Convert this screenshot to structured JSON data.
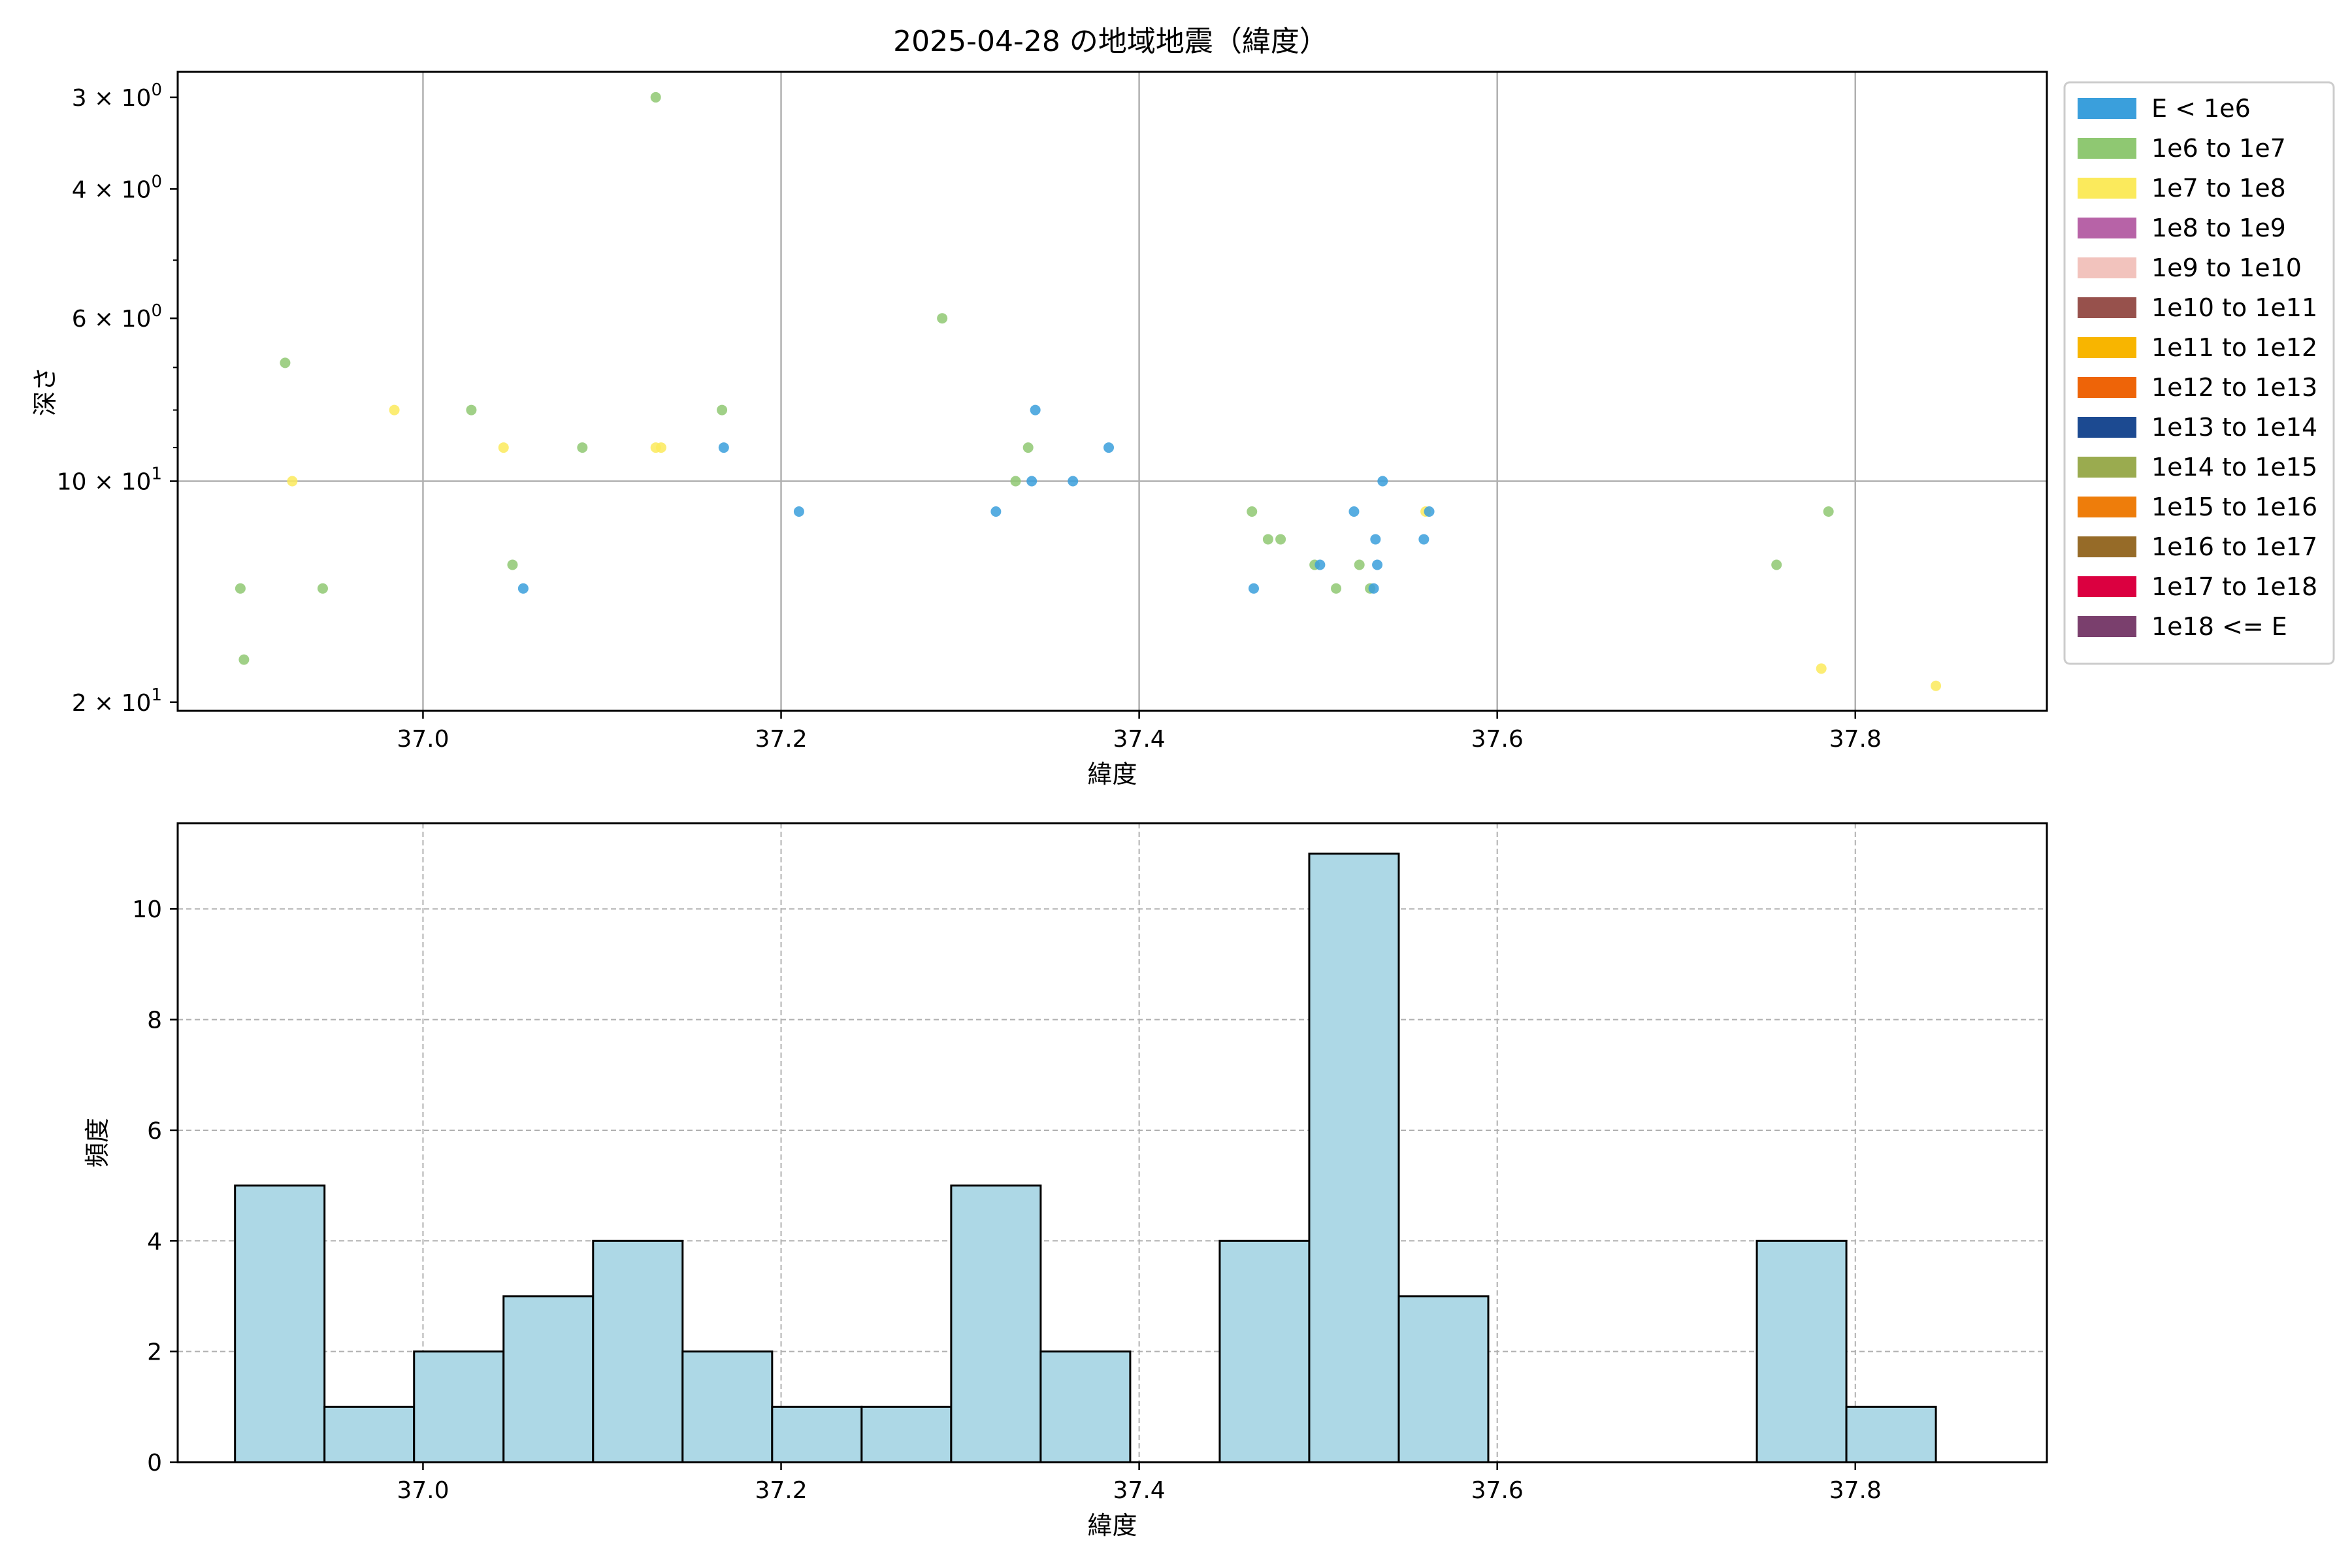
{
  "figure": {
    "title": "2025-04-28 の地域地震（緯度）"
  },
  "chart_data": [
    {
      "type": "scatter",
      "xlabel": "緯度",
      "ylabel": "深さ",
      "xlim": [
        36.863,
        37.907
      ],
      "ylim": [
        20.55,
        2.77
      ],
      "yscale": "log",
      "y_inverted": true,
      "grid": true,
      "xticks": [
        37.0,
        37.2,
        37.4,
        37.6,
        37.8
      ],
      "xtick_labels": [
        "37.0",
        "37.2",
        "37.4",
        "37.6",
        "37.8"
      ],
      "yticks": [
        3,
        4,
        6,
        10,
        20
      ],
      "ytick_labels": [
        {
          "base": "3",
          "exp": "0"
        },
        {
          "base": "4",
          "exp": "0"
        },
        {
          "base": "6",
          "exp": "0"
        },
        {
          "base": "10",
          "exp": "1"
        },
        {
          "base": "2",
          "exp": "1"
        }
      ],
      "legend_position": "outside-right-top",
      "legend": [
        {
          "label": "E < 1e6",
          "color": "#3a9fdc"
        },
        {
          "label": "1e6 to 1e7",
          "color": "#8fc872"
        },
        {
          "label": "1e7 to 1e8",
          "color": "#fbea5c"
        },
        {
          "label": "1e8 to 1e9",
          "color": "#b763a7"
        },
        {
          "label": "1e9 to 1e10",
          "color": "#f2c3bd"
        },
        {
          "label": "1e10 to 1e11",
          "color": "#97514c"
        },
        {
          "label": "1e11 to 1e12",
          "color": "#f8b500"
        },
        {
          "label": "1e12 to 1e13",
          "color": "#ee6408"
        },
        {
          "label": "1e13 to 1e14",
          "color": "#1c4a91"
        },
        {
          "label": "1e14 to 1e15",
          "color": "#9aab4f"
        },
        {
          "label": "1e15 to 1e16",
          "color": "#ee7d0b"
        },
        {
          "label": "1e16 to 1e17",
          "color": "#966b28"
        },
        {
          "label": "1e17 to 1e18",
          "color": "#db0040"
        },
        {
          "label": "1e18 <= E",
          "color": "#7a3f6d"
        }
      ],
      "points": [
        {
          "x": 36.898,
          "y": 14.0,
          "c": 1
        },
        {
          "x": 36.9,
          "y": 17.5,
          "c": 1
        },
        {
          "x": 36.923,
          "y": 6.9,
          "c": 1
        },
        {
          "x": 36.927,
          "y": 10.0,
          "c": 2
        },
        {
          "x": 36.944,
          "y": 14.0,
          "c": 1
        },
        {
          "x": 36.984,
          "y": 8.0,
          "c": 2
        },
        {
          "x": 37.027,
          "y": 8.0,
          "c": 1
        },
        {
          "x": 37.045,
          "y": 9.0,
          "c": 2
        },
        {
          "x": 37.05,
          "y": 13.0,
          "c": 1
        },
        {
          "x": 37.056,
          "y": 14.0,
          "c": 0
        },
        {
          "x": 37.089,
          "y": 9.0,
          "c": 1
        },
        {
          "x": 37.13,
          "y": 3.0,
          "c": 1
        },
        {
          "x": 37.13,
          "y": 9.0,
          "c": 2
        },
        {
          "x": 37.133,
          "y": 9.0,
          "c": 2
        },
        {
          "x": 37.167,
          "y": 8.0,
          "c": 1
        },
        {
          "x": 37.168,
          "y": 9.0,
          "c": 0
        },
        {
          "x": 37.21,
          "y": 11.0,
          "c": 0
        },
        {
          "x": 37.29,
          "y": 6.0,
          "c": 1
        },
        {
          "x": 37.32,
          "y": 11.0,
          "c": 0
        },
        {
          "x": 37.331,
          "y": 10.0,
          "c": 1
        },
        {
          "x": 37.338,
          "y": 9.0,
          "c": 1
        },
        {
          "x": 37.34,
          "y": 10.0,
          "c": 0
        },
        {
          "x": 37.342,
          "y": 8.0,
          "c": 0
        },
        {
          "x": 37.363,
          "y": 10.0,
          "c": 0
        },
        {
          "x": 37.383,
          "y": 9.0,
          "c": 0
        },
        {
          "x": 37.463,
          "y": 11.0,
          "c": 1
        },
        {
          "x": 37.464,
          "y": 14.0,
          "c": 0
        },
        {
          "x": 37.472,
          "y": 12.0,
          "c": 1
        },
        {
          "x": 37.479,
          "y": 12.0,
          "c": 1
        },
        {
          "x": 37.498,
          "y": 13.0,
          "c": 1
        },
        {
          "x": 37.501,
          "y": 13.0,
          "c": 0
        },
        {
          "x": 37.51,
          "y": 14.0,
          "c": 1
        },
        {
          "x": 37.52,
          "y": 11.0,
          "c": 0
        },
        {
          "x": 37.523,
          "y": 13.0,
          "c": 1
        },
        {
          "x": 37.529,
          "y": 14.0,
          "c": 1
        },
        {
          "x": 37.531,
          "y": 14.0,
          "c": 0
        },
        {
          "x": 37.532,
          "y": 12.0,
          "c": 0
        },
        {
          "x": 37.533,
          "y": 13.0,
          "c": 0
        },
        {
          "x": 37.536,
          "y": 10.0,
          "c": 0
        },
        {
          "x": 37.559,
          "y": 12.0,
          "c": 0
        },
        {
          "x": 37.56,
          "y": 11.0,
          "c": 2
        },
        {
          "x": 37.562,
          "y": 11.0,
          "c": 0
        },
        {
          "x": 37.756,
          "y": 13.0,
          "c": 1
        },
        {
          "x": 37.781,
          "y": 18.0,
          "c": 2
        },
        {
          "x": 37.785,
          "y": 11.0,
          "c": 1
        },
        {
          "x": 37.845,
          "y": 19.0,
          "c": 2
        }
      ]
    },
    {
      "type": "bar",
      "subtype": "histogram",
      "xlabel": "緯度",
      "ylabel": "頻度",
      "xlim": [
        36.863,
        37.907
      ],
      "ylim": [
        0,
        11.55
      ],
      "grid": true,
      "bar_color": "#add8e6",
      "edge_color": "#000000",
      "xticks": [
        37.0,
        37.2,
        37.4,
        37.6,
        37.8
      ],
      "xtick_labels": [
        "37.0",
        "37.2",
        "37.4",
        "37.6",
        "37.8"
      ],
      "yticks": [
        0,
        2,
        4,
        6,
        8,
        10
      ],
      "ytick_labels": [
        "0",
        "2",
        "4",
        "6",
        "8",
        "10"
      ],
      "bin_edges": [
        36.895,
        36.945,
        36.995,
        37.045,
        37.095,
        37.145,
        37.195,
        37.245,
        37.295,
        37.345,
        37.395,
        37.445,
        37.495,
        37.545,
        37.595,
        37.645,
        37.695,
        37.745,
        37.795,
        37.845
      ],
      "values": [
        5,
        1,
        2,
        3,
        4,
        2,
        1,
        1,
        5,
        2,
        0,
        4,
        11,
        3,
        0,
        0,
        0,
        4,
        1
      ]
    }
  ]
}
